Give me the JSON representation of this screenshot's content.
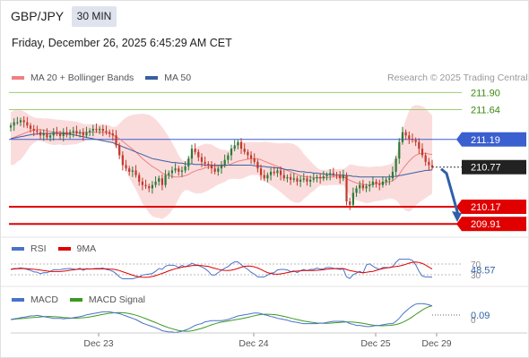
{
  "header": {
    "pair": "GBP/JPY",
    "timeframe": "30 MIN"
  },
  "datetime": "Friday, December 26, 2025 6:45:29 AM CET",
  "credit": "Research © 2025 Trading Central",
  "legend": {
    "main": [
      {
        "label": "MA 20 + Bollinger Bands",
        "color": "#f08080"
      },
      {
        "label": "MA 50",
        "color": "#3a5fa0"
      }
    ],
    "rsi": [
      {
        "label": "RSI",
        "color": "#4a72c8"
      },
      {
        "label": "9MA",
        "color": "#e00000"
      }
    ],
    "macd": [
      {
        "label": "MACD",
        "color": "#4a72c8"
      },
      {
        "label": "MACD Signal",
        "color": "#3a9a20"
      }
    ]
  },
  "colors": {
    "up": "#2a7a3a",
    "down": "#c0392b",
    "support": "#e00000",
    "pivot": "#3a5fcf",
    "resistance": "#9ccc70",
    "arrow": "#2f5fa8"
  },
  "chart_data": [
    {
      "type": "candlestick",
      "title": "GBP/JPY 30 MIN",
      "x_ticks": [
        "Dec 23",
        "Dec 24",
        "Dec 25",
        "Dec 29"
      ],
      "ylim": [
        209.75,
        212.0
      ],
      "levels": [
        {
          "label": "211.90",
          "value": 211.9,
          "kind": "resistance"
        },
        {
          "label": "211.64",
          "value": 211.64,
          "kind": "resistance"
        },
        {
          "label": "211.19",
          "value": 211.19,
          "kind": "pivot"
        },
        {
          "label": "210.17",
          "value": 210.17,
          "kind": "support"
        },
        {
          "label": "209.91",
          "value": 209.91,
          "kind": "support"
        }
      ],
      "last_price": {
        "label": "210.77",
        "value": 210.77
      },
      "forecast": "down",
      "closes": [
        211.4,
        211.45,
        211.45,
        211.48,
        211.45,
        211.4,
        211.35,
        211.32,
        211.3,
        211.25,
        211.28,
        211.22,
        211.25,
        211.3,
        211.28,
        211.24,
        211.3,
        211.26,
        211.3,
        211.32,
        211.28,
        211.3,
        211.25,
        211.3,
        211.32,
        211.35,
        211.33,
        211.35,
        211.32,
        211.3,
        211.28,
        211.25,
        211.1,
        210.95,
        210.8,
        210.75,
        210.7,
        210.72,
        210.65,
        210.55,
        210.5,
        210.48,
        210.45,
        210.5,
        210.55,
        210.6,
        210.5,
        210.65,
        210.68,
        210.72,
        210.75,
        210.7,
        210.72,
        210.78,
        210.9,
        211.05,
        211.0,
        210.92,
        210.85,
        210.82,
        210.8,
        210.75,
        210.7,
        210.75,
        210.8,
        210.88,
        210.95,
        211.05,
        211.1,
        211.15,
        211.05,
        211.0,
        210.95,
        210.9,
        210.85,
        210.75,
        210.65,
        210.6,
        210.65,
        210.7,
        210.68,
        210.72,
        210.65,
        210.6,
        210.62,
        210.58,
        210.6,
        210.55,
        210.58,
        210.6,
        210.55,
        210.58,
        210.6,
        210.62,
        210.6,
        210.63,
        210.65,
        210.68,
        210.66,
        210.65,
        210.6,
        210.65,
        210.25,
        210.2,
        210.38,
        210.45,
        210.5,
        210.45,
        210.48,
        210.5,
        210.55,
        210.52,
        210.5,
        210.55,
        210.58,
        210.6,
        210.7,
        210.9,
        211.15,
        211.3,
        211.25,
        211.2,
        211.18,
        211.15,
        211.05,
        210.95,
        210.85,
        210.8,
        210.77
      ],
      "ma20": [
        211.2,
        211.22,
        211.24,
        211.26,
        211.28,
        211.3,
        211.32,
        211.33,
        211.34,
        211.34,
        211.33,
        211.32,
        211.31,
        211.3,
        211.3,
        211.3,
        211.29,
        211.29,
        211.29,
        211.29,
        211.29,
        211.29,
        211.29,
        211.3,
        211.3,
        211.3,
        211.3,
        211.3,
        211.3,
        211.29,
        211.28,
        211.26,
        211.23,
        211.2,
        211.16,
        211.12,
        211.08,
        211.04,
        211.0,
        210.95,
        210.9,
        210.86,
        210.82,
        210.78,
        210.75,
        210.72,
        210.68,
        210.66,
        210.64,
        210.63,
        210.62,
        210.62,
        210.63,
        210.64,
        210.66,
        210.69,
        210.71,
        210.73,
        210.74,
        210.76,
        210.77,
        210.78,
        210.78,
        210.78,
        210.78,
        210.79,
        210.8,
        210.82,
        210.84,
        210.86,
        210.87,
        210.88,
        210.89,
        210.9,
        210.9,
        210.9,
        210.88,
        210.86,
        210.84,
        210.82,
        210.8,
        210.78,
        210.76,
        210.74,
        210.72,
        210.7,
        210.68,
        210.66,
        210.64,
        210.63,
        210.62,
        210.62,
        210.61,
        210.61,
        210.61,
        210.61,
        210.61,
        210.62,
        210.62,
        210.62,
        210.62,
        210.62,
        210.6,
        210.57,
        210.55,
        210.53,
        210.52,
        210.51,
        210.5,
        210.5,
        210.51,
        210.52,
        210.52,
        210.53,
        210.54,
        210.55,
        210.56,
        210.6,
        210.66,
        210.74,
        210.8,
        210.86,
        210.91,
        210.95,
        210.97,
        210.98,
        210.98,
        210.97,
        210.96
      ],
      "ma50": [
        211.2,
        211.21,
        211.22,
        211.23,
        211.24,
        211.25,
        211.26,
        211.27,
        211.27,
        211.28,
        211.28,
        211.28,
        211.28,
        211.28,
        211.28,
        211.28,
        211.28,
        211.27,
        211.27,
        211.26,
        211.25,
        211.24,
        211.23,
        211.22,
        211.21,
        211.2,
        211.19,
        211.18,
        211.17,
        211.16,
        211.15,
        211.14,
        211.12,
        211.1,
        211.08,
        211.06,
        211.04,
        211.02,
        211.0,
        210.98,
        210.96,
        210.94,
        210.92,
        210.9,
        210.89,
        210.88,
        210.87,
        210.86,
        210.85,
        210.84,
        210.84,
        210.83,
        210.83,
        210.82,
        210.82,
        210.82,
        210.81,
        210.81,
        210.81,
        210.8,
        210.8,
        210.8,
        210.8,
        210.8,
        210.8,
        210.8,
        210.8,
        210.8,
        210.8,
        210.8,
        210.8,
        210.8,
        210.8,
        210.8,
        210.79,
        210.79,
        210.78,
        210.78,
        210.77,
        210.77,
        210.76,
        210.76,
        210.75,
        210.74,
        210.73,
        210.73,
        210.72,
        210.71,
        210.7,
        210.7,
        210.69,
        210.69,
        210.68,
        210.68,
        210.67,
        210.67,
        210.66,
        210.66,
        210.65,
        210.65,
        210.65,
        210.65,
        210.64,
        210.64,
        210.63,
        210.63,
        210.62,
        210.62,
        210.62,
        210.62,
        210.62,
        210.62,
        210.62,
        210.62,
        210.62,
        210.62,
        210.63,
        210.63,
        210.64,
        210.65,
        210.66,
        210.67,
        210.68,
        210.69,
        210.7,
        210.71,
        210.72,
        210.72,
        210.73
      ]
    },
    {
      "type": "line",
      "title": "RSI",
      "y_ticks": [
        "70",
        "48.57",
        "30"
      ],
      "last_value": "48.57",
      "series": [
        {
          "name": "RSI"
        },
        {
          "name": "9MA"
        }
      ]
    },
    {
      "type": "line",
      "title": "MACD",
      "y_ticks": [
        "0.09",
        "0"
      ],
      "last_value": "0.09",
      "series": [
        {
          "name": "MACD"
        },
        {
          "name": "MACD Signal"
        }
      ]
    }
  ]
}
